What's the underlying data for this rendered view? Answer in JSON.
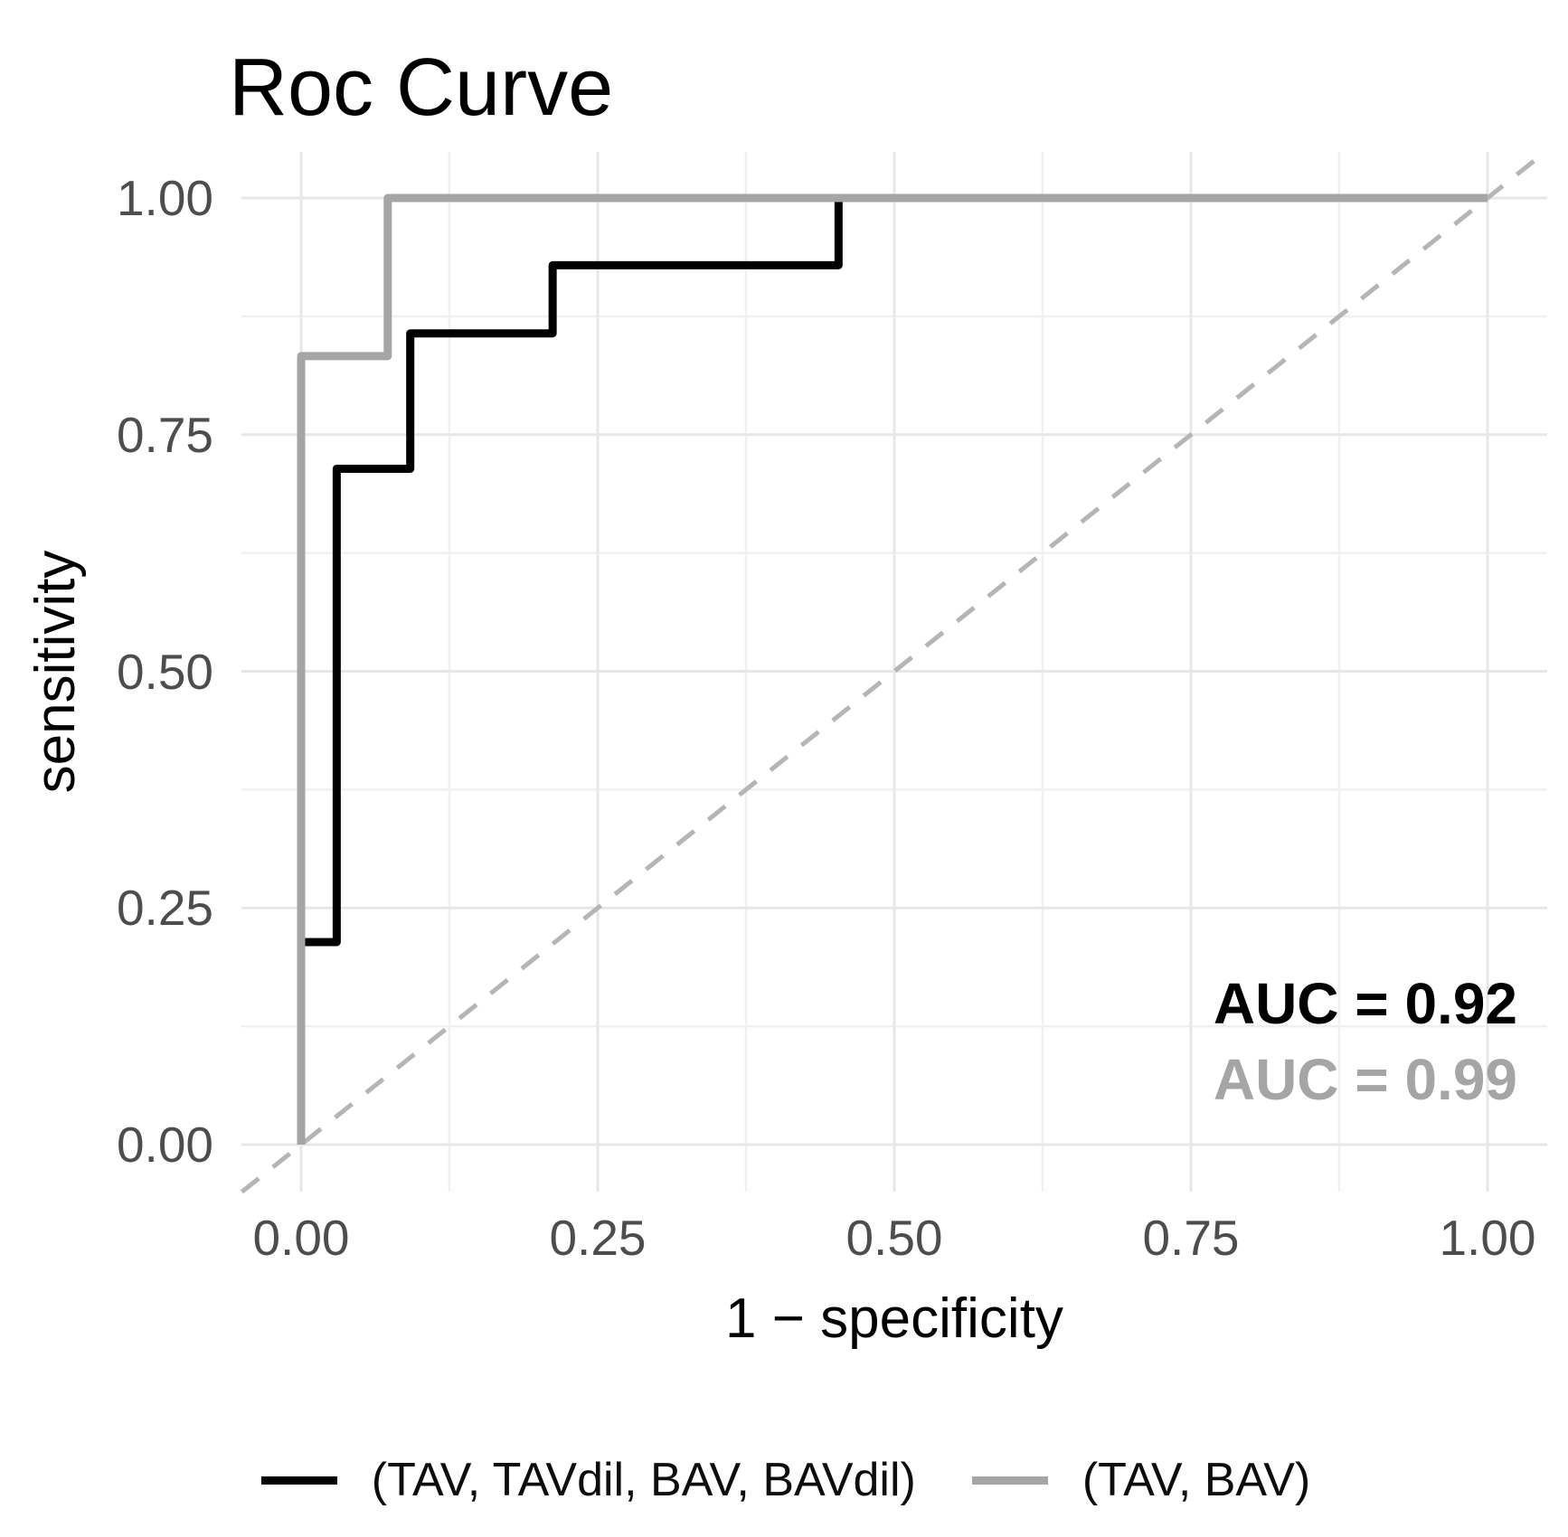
{
  "chart": {
    "title": "Roc Curve",
    "x_axis": {
      "title": "1 − specificity",
      "tick_values": [
        0,
        0.25,
        0.5,
        0.75,
        1
      ],
      "tick_labels": [
        "0.00",
        "0.25",
        "0.50",
        "0.75",
        "1.00"
      ],
      "minor_tick_values": [
        0.125,
        0.375,
        0.625,
        0.875
      ]
    },
    "y_axis": {
      "title": "sensitivity",
      "tick_values": [
        0,
        0.25,
        0.5,
        0.75,
        1
      ],
      "tick_labels": [
        "0.00",
        "0.25",
        "0.50",
        "0.75",
        "1.00"
      ],
      "minor_tick_values": [
        0.125,
        0.375,
        0.625,
        0.875
      ]
    },
    "colors": {
      "background": "#ffffff",
      "grid_major": "#e7e7e7",
      "grid_minor": "#f0f0f0",
      "tick_label": "#4d4d4d",
      "axis_title": "#000000",
      "series_black": "#000000",
      "series_gray": "#a5a5a5",
      "reference_dashed": "#b5b5b5"
    }
  },
  "chart_data": {
    "type": "line",
    "subtype": "roc-step-curves",
    "title": "Roc Curve",
    "xlabel": "1 − specificity",
    "ylabel": "sensitivity",
    "xlim": [
      0,
      1
    ],
    "ylim": [
      0,
      1
    ],
    "grid": true,
    "legend_position": "bottom",
    "series": [
      {
        "name": "(TAV, TAVdil, BAV, BAVdil)",
        "color": "#000000",
        "auc": 0.92,
        "auc_label": "AUC = 0.92",
        "points": [
          [
            0,
            0
          ],
          [
            0,
            0.214
          ],
          [
            0.03,
            0.214
          ],
          [
            0.03,
            0.714
          ],
          [
            0.092,
            0.714
          ],
          [
            0.092,
            0.857
          ],
          [
            0.212,
            0.857
          ],
          [
            0.212,
            0.929
          ],
          [
            0.453,
            0.929
          ],
          [
            0.453,
            1
          ],
          [
            1,
            1
          ]
        ]
      },
      {
        "name": "(TAV, BAV)",
        "color": "#a5a5a5",
        "auc": 0.99,
        "auc_label": "AUC = 0.99",
        "points": [
          [
            0,
            0
          ],
          [
            0,
            0.833
          ],
          [
            0.073,
            0.833
          ],
          [
            0.073,
            1
          ],
          [
            1,
            1
          ]
        ]
      }
    ],
    "reference_line": {
      "style": "dashed",
      "color": "#b5b5b5",
      "from": [
        0,
        0
      ],
      "to": [
        1,
        1
      ],
      "description": "chance diagonal"
    }
  }
}
